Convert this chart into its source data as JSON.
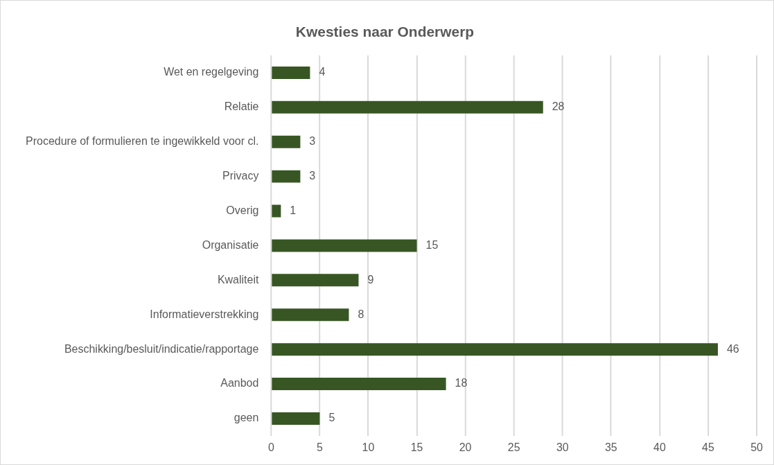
{
  "chart_data": {
    "type": "bar",
    "orientation": "horizontal",
    "title": "Kwesties naar Onderwerp",
    "categories": [
      "Wet en regelgeving",
      "Relatie",
      "Procedure of formulieren te ingewikkeld voor cl.",
      "Privacy",
      "Overig",
      "Organisatie",
      "Kwaliteit",
      "Informatieverstrekking",
      "Beschikking/besluit/indicatie/rapportage",
      "Aanbod",
      "geen"
    ],
    "values": [
      4,
      28,
      3,
      3,
      1,
      15,
      9,
      8,
      46,
      18,
      5
    ],
    "color": "#375623",
    "xlim": [
      0,
      50
    ],
    "xticks": [
      0,
      5,
      10,
      15,
      20,
      25,
      30,
      35,
      40,
      45,
      50
    ],
    "grid": "x",
    "legend": false,
    "data_labels": true
  }
}
